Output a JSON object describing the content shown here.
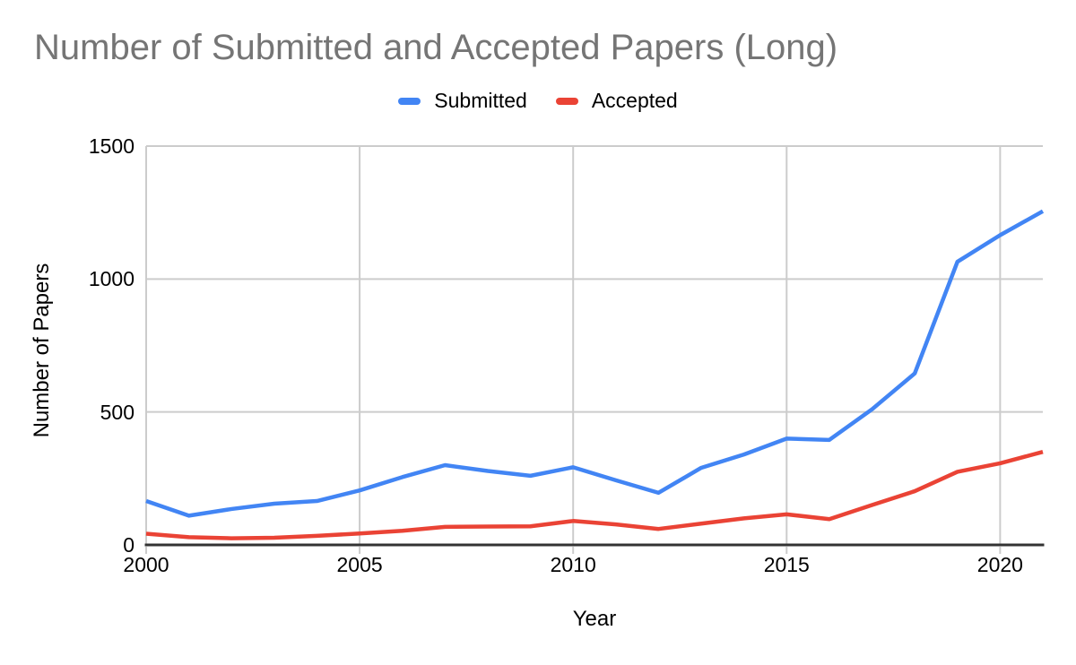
{
  "chart_data": {
    "type": "line",
    "title": "Number of Submitted and Accepted Papers (Long)",
    "xlabel": "Year",
    "ylabel": "Number of Papers",
    "x": [
      2000,
      2001,
      2002,
      2003,
      2004,
      2005,
      2006,
      2007,
      2008,
      2009,
      2010,
      2011,
      2012,
      2013,
      2014,
      2015,
      2016,
      2017,
      2018,
      2019,
      2020,
      2021
    ],
    "series": [
      {
        "name": "Submitted",
        "color": "#4285f4",
        "values": [
          165,
          110,
          135,
          155,
          165,
          205,
          255,
          300,
          278,
          260,
          292,
          243,
          196,
          290,
          340,
          400,
          395,
          510,
          645,
          1065,
          1165,
          1255
        ]
      },
      {
        "name": "Accepted",
        "color": "#ea4335",
        "values": [
          42,
          29,
          25,
          27,
          34,
          43,
          53,
          68,
          69,
          70,
          90,
          77,
          60,
          80,
          100,
          115,
          97,
          150,
          202,
          275,
          307,
          350
        ]
      }
    ],
    "ylim": [
      0,
      1500
    ],
    "yticks": [
      0,
      500,
      1000,
      1500
    ],
    "xticks": [
      2000,
      2005,
      2010,
      2015,
      2020
    ],
    "grid": true,
    "legend_position": "top"
  },
  "colors": {
    "title_text": "#757575",
    "axis_line": "#333333",
    "gridline": "#cccccc",
    "tick_text": "#000000",
    "series_submitted": "#4285f4",
    "series_accepted": "#ea4335"
  }
}
